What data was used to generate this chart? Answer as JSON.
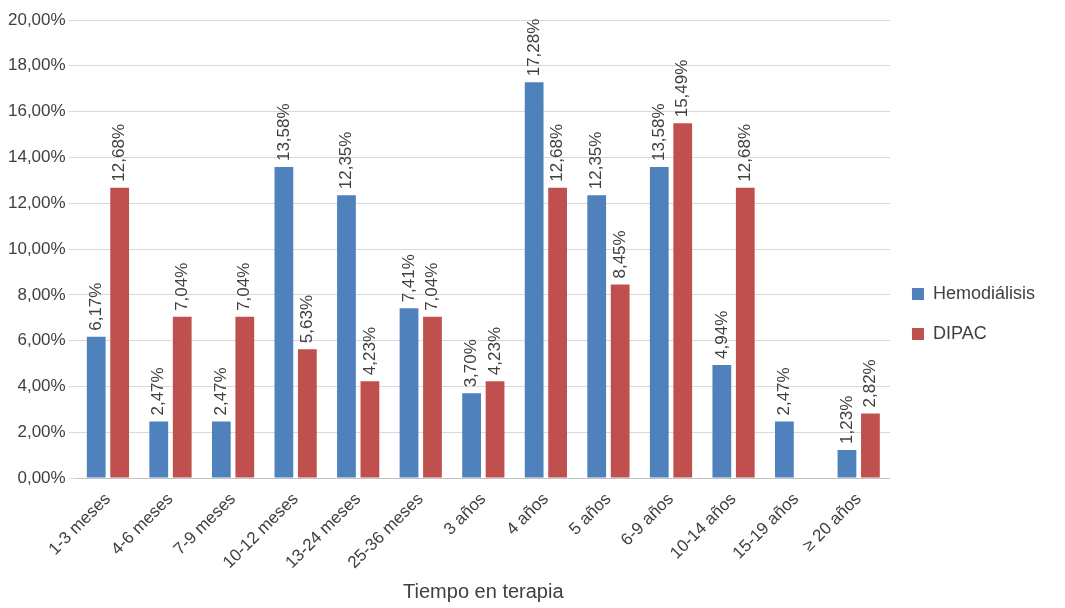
{
  "chart_data": {
    "type": "bar",
    "xlabel": "Tiempo en terapia",
    "categories": [
      "1-3 meses",
      "4-6 meses",
      "7-9 meses",
      "10-12 meses",
      "13-24 meses",
      "25-36 meses",
      "3 años",
      "4 años",
      "5 años",
      "6-9 años",
      "10-14 años",
      "15-19 años",
      "≥ 20 años"
    ],
    "series": [
      {
        "name": "Hemodiálisis",
        "color": "#4f81bd",
        "values": [
          6.17,
          2.47,
          2.47,
          13.58,
          12.35,
          7.41,
          3.7,
          17.28,
          12.35,
          13.58,
          4.94,
          2.47,
          1.23
        ],
        "value_labels": [
          "6,17%",
          "2,47%",
          "2,47%",
          "13,58%",
          "12,35%",
          "7,41%",
          "3,70%",
          "17,28%",
          "12,35%",
          "13,58%",
          "4,94%",
          "2,47%",
          "1,23%"
        ]
      },
      {
        "name": "DIPAC",
        "color": "#c0504d",
        "values": [
          12.68,
          7.04,
          7.04,
          5.63,
          4.23,
          7.04,
          4.23,
          12.68,
          8.45,
          15.49,
          12.68,
          null,
          2.82
        ],
        "value_labels": [
          "12,68%",
          "7,04%",
          "7,04%",
          "5,63%",
          "4,23%",
          "7,04%",
          "4,23%",
          "12,68%",
          "8,45%",
          "15,49%",
          "12,68%",
          null,
          "2,82%"
        ]
      }
    ],
    "ylim": [
      0,
      20
    ],
    "yticks": [
      {
        "value": 0,
        "label": "0,00%"
      },
      {
        "value": 2,
        "label": "2,00%"
      },
      {
        "value": 4,
        "label": "4,00%"
      },
      {
        "value": 6,
        "label": "6,00%"
      },
      {
        "value": 8,
        "label": "8,00%"
      },
      {
        "value": 10,
        "label": "10,00%"
      },
      {
        "value": 12,
        "label": "12,00%"
      },
      {
        "value": 14,
        "label": "14,00%"
      },
      {
        "value": 16,
        "label": "16,00%"
      },
      {
        "value": 18,
        "label": "18,00%"
      },
      {
        "value": 20,
        "label": "20,00%"
      }
    ],
    "grid": "y",
    "legend": "right"
  }
}
